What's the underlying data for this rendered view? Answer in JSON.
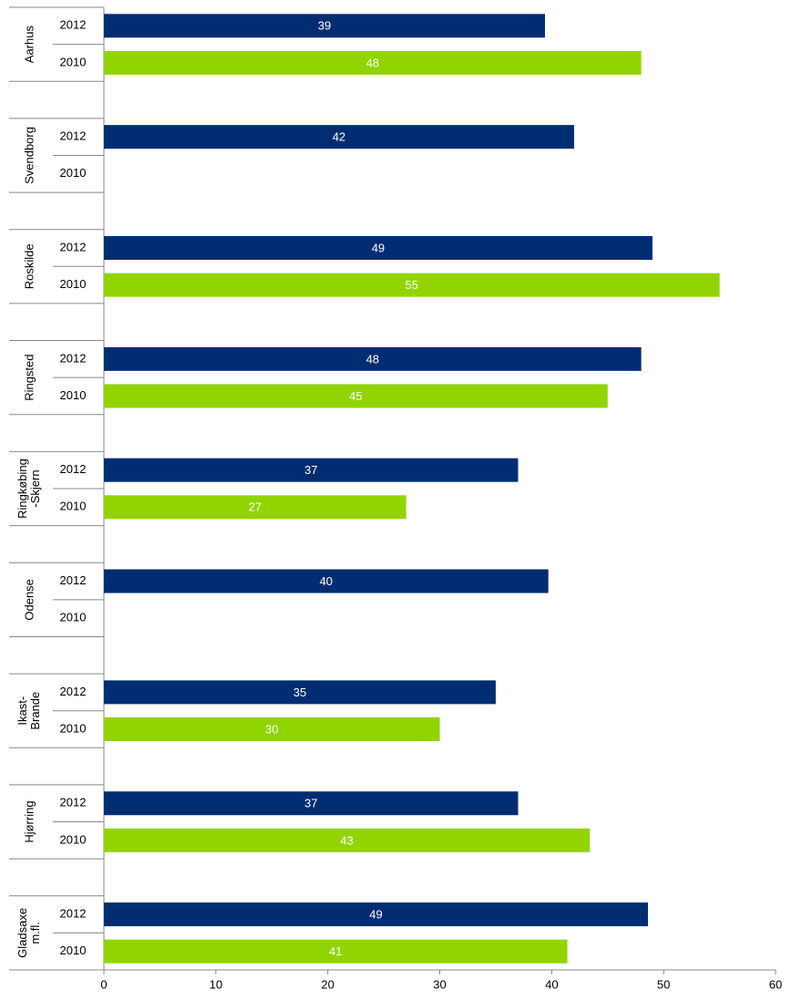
{
  "chart_data": {
    "type": "bar",
    "orientation": "horizontal",
    "categories": [
      "Aarhus",
      "Svendborg",
      "Roskilde",
      "Ringsted",
      "Ringkøbing\n-Skjern",
      "Odense",
      "Ikast-\nBrande",
      "Hjørring",
      "Gladsaxe\nm.fl."
    ],
    "series": [
      {
        "name": "2012",
        "color": "#002d72",
        "values": [
          39.4,
          42,
          49,
          48,
          37,
          39.7,
          35,
          37,
          48.6
        ],
        "value_labels": [
          "39",
          "42",
          "49",
          "48",
          "37",
          "40",
          "35",
          "37",
          "49"
        ]
      },
      {
        "name": "2010",
        "color": "#92d400",
        "values": [
          48,
          null,
          55,
          45,
          27,
          null,
          30,
          43.4,
          41.4
        ],
        "value_labels": [
          "48",
          null,
          "55",
          "45",
          "27",
          null,
          "30",
          "43",
          "41"
        ]
      }
    ],
    "xlim": [
      0,
      60
    ],
    "xticks": [
      0,
      10,
      20,
      30,
      40,
      50,
      60
    ]
  }
}
